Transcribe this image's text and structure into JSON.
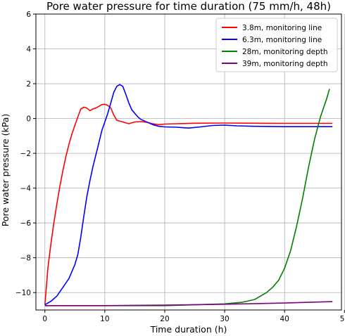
{
  "chart_data": {
    "type": "line",
    "title": "Pore water pressure for time duration (75 mm/h, 48h)",
    "xlabel": "Time duration (h)",
    "ylabel": "Pore water pressure (kPa)",
    "xlim": [
      -1.5,
      49.5
    ],
    "ylim": [
      -11,
      6
    ],
    "xticks": [
      0,
      10,
      20,
      30,
      40,
      50
    ],
    "yticks": [
      -10,
      -8,
      -6,
      -4,
      -2,
      0,
      2,
      4,
      6
    ],
    "grid": true,
    "legend_position": "top-right",
    "series": [
      {
        "name": "3.8m, monitoring line",
        "color": "#ff0000",
        "x": [
          0,
          0.5,
          1,
          1.5,
          2,
          2.5,
          3,
          3.5,
          4,
          4.5,
          5,
          5.5,
          6,
          6.5,
          7,
          7.5,
          8,
          8.5,
          9,
          9.5,
          10,
          10.5,
          11,
          11.5,
          12,
          13,
          14,
          15,
          16,
          17,
          18,
          19,
          20,
          22,
          25,
          30,
          35,
          40,
          45,
          48
        ],
        "y": [
          -10.7,
          -8.6,
          -7.2,
          -6.0,
          -4.9,
          -3.9,
          -3.0,
          -2.2,
          -1.5,
          -0.9,
          -0.4,
          0.1,
          0.55,
          0.65,
          0.6,
          0.45,
          0.55,
          0.6,
          0.7,
          0.8,
          0.82,
          0.75,
          0.6,
          0.2,
          -0.1,
          -0.2,
          -0.3,
          -0.2,
          -0.18,
          -0.22,
          -0.3,
          -0.35,
          -0.32,
          -0.3,
          -0.27,
          -0.26,
          -0.27,
          -0.28,
          -0.28,
          -0.28
        ]
      },
      {
        "name": "6.3m, monitoring line",
        "color": "#0000ff",
        "x": [
          0,
          1,
          2,
          3,
          4,
          5,
          5.5,
          6,
          6.5,
          7,
          7.5,
          8,
          8.5,
          9,
          9.5,
          10,
          10.5,
          11,
          11.5,
          12,
          12.5,
          13,
          13.5,
          14,
          14.5,
          15,
          15.5,
          16,
          17,
          18,
          19,
          20,
          22,
          24,
          26,
          28,
          30,
          32,
          35,
          40,
          45,
          48
        ],
        "y": [
          -10.7,
          -10.5,
          -10.2,
          -9.7,
          -9.2,
          -8.4,
          -7.8,
          -6.8,
          -5.6,
          -4.5,
          -3.6,
          -2.8,
          -2.1,
          -1.4,
          -0.7,
          -0.2,
          0.3,
          0.9,
          1.5,
          1.85,
          1.95,
          1.85,
          1.4,
          0.9,
          0.5,
          0.3,
          0.1,
          -0.05,
          -0.2,
          -0.35,
          -0.45,
          -0.48,
          -0.5,
          -0.55,
          -0.48,
          -0.4,
          -0.38,
          -0.42,
          -0.45,
          -0.47,
          -0.47,
          -0.47
        ]
      },
      {
        "name": "28m, monitoring depth",
        "color": "#008000",
        "x": [
          0,
          10,
          20,
          25,
          30,
          33,
          35,
          36,
          37,
          38,
          39,
          40,
          41,
          42,
          43,
          44,
          45,
          46,
          47,
          47.5
        ],
        "y": [
          -10.75,
          -10.75,
          -10.75,
          -10.7,
          -10.65,
          -10.55,
          -10.4,
          -10.2,
          -10.0,
          -9.7,
          -9.3,
          -8.6,
          -7.6,
          -6.2,
          -4.6,
          -2.8,
          -1.2,
          0.1,
          1.1,
          1.7
        ]
      },
      {
        "name": "39m, monitoring depth",
        "color": "#800080",
        "x": [
          0,
          10,
          20,
          30,
          40,
          48
        ],
        "y": [
          -10.75,
          -10.75,
          -10.72,
          -10.67,
          -10.6,
          -10.52
        ]
      }
    ]
  }
}
